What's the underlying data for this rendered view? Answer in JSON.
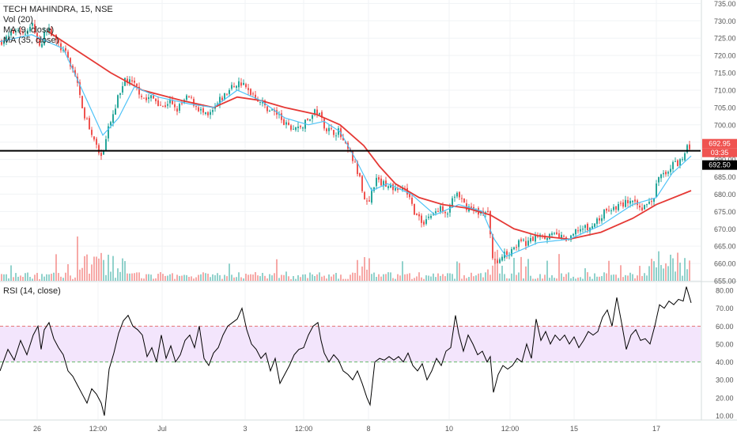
{
  "header": {
    "symbol_line": "TECH MAHINDRA, 15, NSE",
    "vol_label": "Vol (20)",
    "ma_fast_label": "MA (9, close)",
    "ma_slow_label": "MA (35, close)",
    "rsi_label": "RSI (14, close)"
  },
  "price_axis": {
    "ticks": [
      "735.00",
      "730.00",
      "725.00",
      "720.00",
      "715.00",
      "710.00",
      "705.00",
      "700.00",
      "695.00",
      "690.00",
      "685.00",
      "680.00",
      "675.00",
      "670.00",
      "665.00",
      "660.00",
      "655.00"
    ],
    "last_price_tag": "692.95",
    "countdown_tag": "03:35",
    "line_price_tag": "692.50"
  },
  "rsi_axis": {
    "ticks": [
      "80.00",
      "70.00",
      "60.00",
      "50.00",
      "40.00",
      "30.00",
      "20.00",
      "10.00"
    ]
  },
  "time_axis": {
    "labels": [
      "26",
      "12:00",
      "Jul",
      "3",
      "12:00",
      "8",
      "10",
      "12:00",
      "15",
      "17"
    ]
  },
  "colors": {
    "up": "#26a69a",
    "down": "#ef5350",
    "ma_fast": "#4fc3f7",
    "ma_slow": "#e53935",
    "rsi_line": "#000000",
    "rsi_band": "#f3e5fc",
    "rsi_upper_dash": "#e57373",
    "rsi_lower_dash": "#66bb6a",
    "hline": "#000000"
  },
  "chart_data": {
    "type": "candlestick",
    "title": "TECH MAHINDRA, 15, NSE",
    "ylim": [
      655,
      736
    ],
    "rsi_ylim": [
      8,
      84
    ],
    "rsi_band": [
      40,
      60
    ],
    "horizontal_line": 692.5,
    "last_price": 692.95,
    "close_path": [
      [
        0,
        724
      ],
      [
        10,
        725
      ],
      [
        22,
        728
      ],
      [
        32,
        726
      ],
      [
        42,
        729
      ],
      [
        50,
        722
      ],
      [
        58,
        728
      ],
      [
        66,
        726
      ],
      [
        74,
        723
      ],
      [
        84,
        720
      ],
      [
        92,
        716
      ],
      [
        100,
        711
      ],
      [
        106,
        703
      ],
      [
        112,
        700
      ],
      [
        118,
        697
      ],
      [
        124,
        692
      ],
      [
        130,
        690
      ],
      [
        136,
        698
      ],
      [
        142,
        702
      ],
      [
        150,
        709
      ],
      [
        158,
        713
      ],
      [
        166,
        712
      ],
      [
        172,
        711
      ],
      [
        178,
        709
      ],
      [
        184,
        707
      ],
      [
        190,
        708
      ],
      [
        198,
        707
      ],
      [
        206,
        705
      ],
      [
        214,
        707
      ],
      [
        222,
        704
      ],
      [
        230,
        706
      ],
      [
        238,
        708
      ],
      [
        246,
        706
      ],
      [
        254,
        704
      ],
      [
        262,
        702
      ],
      [
        270,
        704
      ],
      [
        278,
        707
      ],
      [
        286,
        709
      ],
      [
        294,
        711
      ],
      [
        300,
        712
      ],
      [
        306,
        712
      ],
      [
        312,
        710
      ],
      [
        320,
        709
      ],
      [
        328,
        707
      ],
      [
        336,
        705
      ],
      [
        344,
        704
      ],
      [
        352,
        703
      ],
      [
        360,
        700
      ],
      [
        368,
        699
      ],
      [
        376,
        699
      ],
      [
        384,
        700
      ],
      [
        392,
        702
      ],
      [
        400,
        704
      ],
      [
        406,
        702
      ],
      [
        412,
        699
      ],
      [
        420,
        698
      ],
      [
        428,
        698
      ],
      [
        436,
        694
      ],
      [
        442,
        692
      ],
      [
        448,
        689
      ],
      [
        454,
        685
      ],
      [
        460,
        680
      ],
      [
        466,
        676
      ],
      [
        470,
        681
      ],
      [
        476,
        684
      ],
      [
        484,
        683
      ],
      [
        492,
        683
      ],
      [
        500,
        681
      ],
      [
        508,
        682
      ],
      [
        516,
        680
      ],
      [
        522,
        676
      ],
      [
        528,
        673
      ],
      [
        536,
        672
      ],
      [
        544,
        674
      ],
      [
        552,
        675
      ],
      [
        560,
        676
      ],
      [
        566,
        675
      ],
      [
        572,
        679
      ],
      [
        578,
        680
      ],
      [
        586,
        677
      ],
      [
        594,
        676
      ],
      [
        602,
        675
      ],
      [
        610,
        675
      ],
      [
        618,
        674
      ],
      [
        622,
        662
      ],
      [
        628,
        660
      ],
      [
        634,
        662
      ],
      [
        642,
        663
      ],
      [
        650,
        665
      ],
      [
        658,
        666
      ],
      [
        666,
        666
      ],
      [
        674,
        667
      ],
      [
        682,
        669
      ],
      [
        690,
        668
      ],
      [
        698,
        668
      ],
      [
        706,
        668
      ],
      [
        714,
        667
      ],
      [
        722,
        667
      ],
      [
        730,
        670
      ],
      [
        738,
        670
      ],
      [
        746,
        670
      ],
      [
        754,
        672
      ],
      [
        762,
        674
      ],
      [
        770,
        676
      ],
      [
        778,
        676
      ],
      [
        786,
        677
      ],
      [
        794,
        678
      ],
      [
        802,
        677
      ],
      [
        810,
        676
      ],
      [
        818,
        677
      ],
      [
        826,
        678
      ],
      [
        832,
        684
      ],
      [
        840,
        686
      ],
      [
        848,
        688
      ],
      [
        856,
        689
      ],
      [
        864,
        690
      ],
      [
        868,
        695
      ],
      [
        874,
        693
      ]
    ],
    "ma_fast_path": [
      [
        0,
        724
      ],
      [
        40,
        726
      ],
      [
        80,
        722
      ],
      [
        110,
        707
      ],
      [
        130,
        697
      ],
      [
        150,
        702
      ],
      [
        170,
        711
      ],
      [
        200,
        708
      ],
      [
        240,
        706
      ],
      [
        270,
        705
      ],
      [
        300,
        710
      ],
      [
        330,
        707
      ],
      [
        360,
        702
      ],
      [
        390,
        700
      ],
      [
        410,
        701
      ],
      [
        430,
        698
      ],
      [
        450,
        690
      ],
      [
        470,
        681
      ],
      [
        490,
        683
      ],
      [
        520,
        680
      ],
      [
        550,
        674
      ],
      [
        580,
        677
      ],
      [
        610,
        675
      ],
      [
        625,
        667
      ],
      [
        640,
        662
      ],
      [
        680,
        666
      ],
      [
        720,
        667
      ],
      [
        760,
        671
      ],
      [
        800,
        677
      ],
      [
        830,
        679
      ],
      [
        850,
        686
      ],
      [
        874,
        691
      ]
    ],
    "ma_slow_path": [
      [
        60,
        727
      ],
      [
        100,
        721
      ],
      [
        140,
        715
      ],
      [
        180,
        710
      ],
      [
        230,
        707
      ],
      [
        270,
        705
      ],
      [
        300,
        708
      ],
      [
        330,
        707
      ],
      [
        360,
        705
      ],
      [
        400,
        703
      ],
      [
        430,
        700
      ],
      [
        460,
        694
      ],
      [
        480,
        688
      ],
      [
        500,
        683
      ],
      [
        530,
        679
      ],
      [
        560,
        677
      ],
      [
        590,
        676
      ],
      [
        620,
        674
      ],
      [
        650,
        670
      ],
      [
        680,
        668
      ],
      [
        720,
        667
      ],
      [
        760,
        669
      ],
      [
        800,
        673
      ],
      [
        830,
        677
      ],
      [
        874,
        681
      ]
    ],
    "rsi_path": [
      [
        0,
        35
      ],
      [
        10,
        47
      ],
      [
        18,
        41
      ],
      [
        26,
        52
      ],
      [
        34,
        44
      ],
      [
        42,
        55
      ],
      [
        48,
        60
      ],
      [
        52,
        47
      ],
      [
        56,
        58
      ],
      [
        62,
        62
      ],
      [
        68,
        53
      ],
      [
        74,
        48
      ],
      [
        80,
        44
      ],
      [
        86,
        35
      ],
      [
        92,
        32
      ],
      [
        98,
        27
      ],
      [
        104,
        22
      ],
      [
        110,
        17
      ],
      [
        116,
        25
      ],
      [
        122,
        22
      ],
      [
        128,
        17
      ],
      [
        132,
        10
      ],
      [
        138,
        36
      ],
      [
        144,
        45
      ],
      [
        150,
        56
      ],
      [
        156,
        63
      ],
      [
        162,
        66
      ],
      [
        168,
        60
      ],
      [
        174,
        58
      ],
      [
        180,
        55
      ],
      [
        186,
        43
      ],
      [
        192,
        48
      ],
      [
        198,
        40
      ],
      [
        204,
        55
      ],
      [
        210,
        42
      ],
      [
        216,
        49
      ],
      [
        222,
        40
      ],
      [
        228,
        44
      ],
      [
        234,
        52
      ],
      [
        240,
        55
      ],
      [
        246,
        48
      ],
      [
        252,
        60
      ],
      [
        258,
        42
      ],
      [
        264,
        38
      ],
      [
        270,
        45
      ],
      [
        276,
        48
      ],
      [
        282,
        55
      ],
      [
        288,
        60
      ],
      [
        294,
        62
      ],
      [
        300,
        64
      ],
      [
        306,
        70
      ],
      [
        312,
        58
      ],
      [
        318,
        50
      ],
      [
        324,
        47
      ],
      [
        330,
        42
      ],
      [
        336,
        45
      ],
      [
        342,
        35
      ],
      [
        348,
        42
      ],
      [
        354,
        28
      ],
      [
        360,
        33
      ],
      [
        366,
        38
      ],
      [
        372,
        44
      ],
      [
        378,
        47
      ],
      [
        384,
        48
      ],
      [
        390,
        55
      ],
      [
        396,
        60
      ],
      [
        402,
        62
      ],
      [
        406,
        52
      ],
      [
        410,
        45
      ],
      [
        416,
        40
      ],
      [
        422,
        44
      ],
      [
        428,
        41
      ],
      [
        434,
        35
      ],
      [
        440,
        33
      ],
      [
        446,
        30
      ],
      [
        452,
        35
      ],
      [
        458,
        28
      ],
      [
        464,
        20
      ],
      [
        468,
        16
      ],
      [
        474,
        40
      ],
      [
        480,
        42
      ],
      [
        486,
        41
      ],
      [
        492,
        43
      ],
      [
        498,
        41
      ],
      [
        504,
        43
      ],
      [
        510,
        40
      ],
      [
        516,
        45
      ],
      [
        522,
        38
      ],
      [
        528,
        35
      ],
      [
        534,
        39
      ],
      [
        540,
        30
      ],
      [
        546,
        35
      ],
      [
        552,
        42
      ],
      [
        558,
        38
      ],
      [
        564,
        46
      ],
      [
        570,
        48
      ],
      [
        576,
        66
      ],
      [
        580,
        56
      ],
      [
        586,
        46
      ],
      [
        592,
        55
      ],
      [
        598,
        50
      ],
      [
        604,
        44
      ],
      [
        610,
        46
      ],
      [
        616,
        40
      ],
      [
        620,
        43
      ],
      [
        624,
        23
      ],
      [
        630,
        33
      ],
      [
        636,
        38
      ],
      [
        642,
        36
      ],
      [
        648,
        38
      ],
      [
        654,
        42
      ],
      [
        660,
        40
      ],
      [
        666,
        50
      ],
      [
        672,
        42
      ],
      [
        678,
        64
      ],
      [
        684,
        52
      ],
      [
        690,
        57
      ],
      [
        696,
        50
      ],
      [
        702,
        55
      ],
      [
        708,
        52
      ],
      [
        714,
        55
      ],
      [
        720,
        50
      ],
      [
        726,
        54
      ],
      [
        732,
        48
      ],
      [
        738,
        52
      ],
      [
        744,
        57
      ],
      [
        750,
        55
      ],
      [
        756,
        57
      ],
      [
        762,
        65
      ],
      [
        768,
        69
      ],
      [
        774,
        60
      ],
      [
        780,
        76
      ],
      [
        786,
        62
      ],
      [
        792,
        47
      ],
      [
        798,
        55
      ],
      [
        804,
        58
      ],
      [
        810,
        52
      ],
      [
        816,
        53
      ],
      [
        822,
        50
      ],
      [
        828,
        60
      ],
      [
        834,
        72
      ],
      [
        840,
        70
      ],
      [
        846,
        74
      ],
      [
        852,
        72
      ],
      [
        858,
        75
      ],
      [
        864,
        74
      ],
      [
        868,
        82
      ],
      [
        874,
        73
      ]
    ]
  }
}
